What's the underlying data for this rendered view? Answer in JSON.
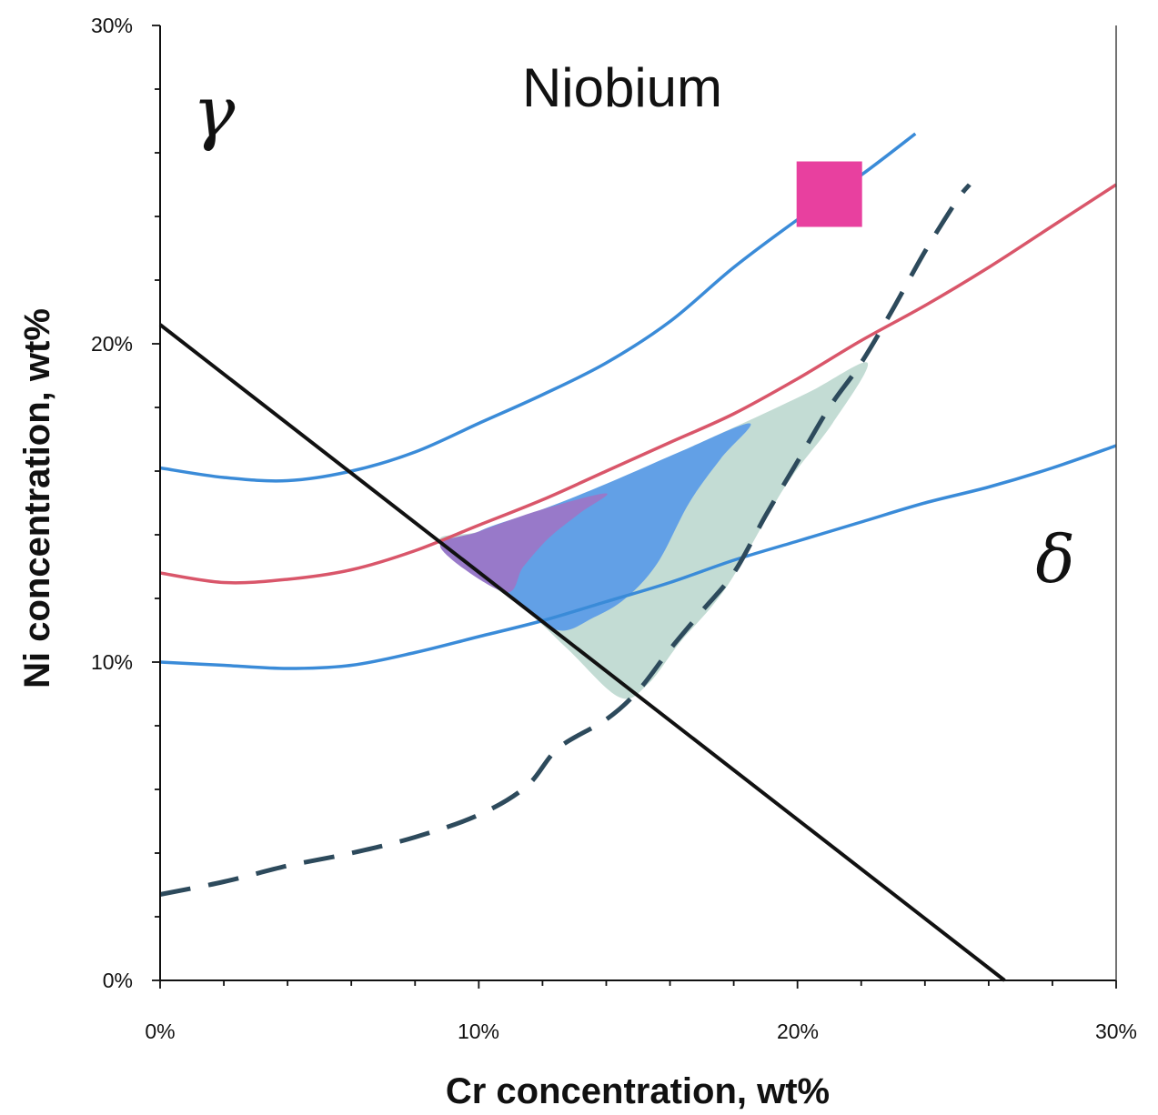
{
  "chart_data": {
    "type": "line",
    "title": "Niobium",
    "xlabel": "Cr concentration, wt%",
    "ylabel": "Ni concentration, wt%",
    "xlim": [
      0,
      30
    ],
    "ylim": [
      0,
      30
    ],
    "x_ticks": [
      "0%",
      "10%",
      "20%",
      "30%"
    ],
    "y_ticks": [
      "0%",
      "10%",
      "20%",
      "30%"
    ],
    "grid": false,
    "annotations": [
      {
        "text": "γ",
        "x": 1.7,
        "y": 26.6
      },
      {
        "text": "δ",
        "x": 28.1,
        "y": 12.2
      }
    ],
    "colors": {
      "blue": "#3a8bd8",
      "red": "#d9566a",
      "black": "#111111",
      "dashed": "#2d4a5c",
      "marker": "#e8409f",
      "fill_green": "#c3dcd4",
      "fill_blue": "#62a0e6",
      "fill_purple": "#9879c9"
    },
    "series": [
      {
        "style": "blue-solid",
        "points": [
          [
            0,
            16.1
          ],
          [
            2,
            15.8
          ],
          [
            4,
            15.7
          ],
          [
            6,
            16
          ],
          [
            8,
            16.6
          ],
          [
            10,
            17.5
          ],
          [
            12,
            18.4
          ],
          [
            14,
            19.4
          ],
          [
            16,
            20.7
          ],
          [
            18,
            22.4
          ],
          [
            20,
            23.9
          ],
          [
            22,
            25.3
          ],
          [
            23.7,
            26.6
          ]
        ]
      },
      {
        "style": "red-solid",
        "points": [
          [
            0,
            12.8
          ],
          [
            2,
            12.5
          ],
          [
            4,
            12.6
          ],
          [
            6,
            12.9
          ],
          [
            8,
            13.5
          ],
          [
            10,
            14.3
          ],
          [
            12,
            15.1
          ],
          [
            14,
            16
          ],
          [
            16,
            16.9
          ],
          [
            18,
            17.8
          ],
          [
            20,
            18.9
          ],
          [
            22,
            20.1
          ],
          [
            24,
            21.2
          ],
          [
            26,
            22.4
          ],
          [
            28,
            23.7
          ],
          [
            30,
            25
          ]
        ]
      },
      {
        "style": "blue-solid",
        "points": [
          [
            0,
            10
          ],
          [
            2,
            9.9
          ],
          [
            4,
            9.8
          ],
          [
            6,
            9.9
          ],
          [
            8,
            10.3
          ],
          [
            10,
            10.8
          ],
          [
            12,
            11.3
          ],
          [
            14,
            11.9
          ],
          [
            16,
            12.5
          ],
          [
            18,
            13.2
          ],
          [
            20,
            13.8
          ],
          [
            22,
            14.4
          ],
          [
            24,
            15
          ],
          [
            26,
            15.5
          ],
          [
            28,
            16.1
          ],
          [
            30,
            16.8
          ]
        ]
      },
      {
        "style": "black-solid",
        "points": [
          [
            0,
            20.6
          ],
          [
            26.5,
            0
          ]
        ]
      },
      {
        "style": "dashed",
        "points": [
          [
            0,
            2.7
          ],
          [
            2,
            3.1
          ],
          [
            4,
            3.6
          ],
          [
            6,
            4
          ],
          [
            8,
            4.5
          ],
          [
            10,
            5.2
          ],
          [
            11.5,
            6.1
          ],
          [
            12.5,
            7.3
          ],
          [
            14,
            8.2
          ],
          [
            15,
            9.1
          ],
          [
            16,
            10.4
          ],
          [
            17,
            11.6
          ],
          [
            18,
            12.8
          ],
          [
            19,
            14.6
          ],
          [
            20,
            16.3
          ],
          [
            21,
            18
          ],
          [
            22,
            19.4
          ],
          [
            23,
            21.1
          ],
          [
            24,
            22.9
          ],
          [
            25,
            24.5
          ],
          [
            25.4,
            25
          ]
        ]
      },
      {
        "style": "marker",
        "points": [
          [
            21,
            24.7
          ]
        ]
      }
    ],
    "regions": [
      {
        "style": "fill_green",
        "points": [
          [
            8.8,
            13.7
          ],
          [
            11.5,
            11.6
          ],
          [
            12.8,
            10.4
          ],
          [
            14.4,
            8.9
          ],
          [
            15.3,
            9.3
          ],
          [
            16.3,
            10.6
          ],
          [
            17.8,
            12.4
          ],
          [
            19.6,
            15.5
          ],
          [
            21.1,
            17.5
          ],
          [
            22.2,
            19.4
          ],
          [
            20.4,
            18.5
          ],
          [
            18.5,
            17.6
          ],
          [
            16.3,
            16.6
          ],
          [
            14,
            15.6
          ],
          [
            12,
            14.8
          ],
          [
            10,
            14.1
          ]
        ]
      },
      {
        "style": "fill_blue",
        "points": [
          [
            9.3,
            13.4
          ],
          [
            11.2,
            11.9
          ],
          [
            12.5,
            11
          ],
          [
            13.6,
            11.4
          ],
          [
            14.6,
            12
          ],
          [
            15.6,
            13.1
          ],
          [
            16.6,
            15
          ],
          [
            17.6,
            16.4
          ],
          [
            18.5,
            17.5
          ],
          [
            16.3,
            16.6
          ],
          [
            14,
            15.6
          ],
          [
            12,
            14.8
          ],
          [
            10,
            14.1
          ]
        ]
      },
      {
        "style": "fill_purple",
        "points": [
          [
            8.8,
            13.6
          ],
          [
            10.8,
            12.2
          ],
          [
            11.4,
            13
          ],
          [
            12.2,
            13.9
          ],
          [
            13.2,
            14.7
          ],
          [
            14,
            15.3
          ],
          [
            12,
            14.8
          ],
          [
            10,
            14.1
          ]
        ]
      }
    ]
  }
}
